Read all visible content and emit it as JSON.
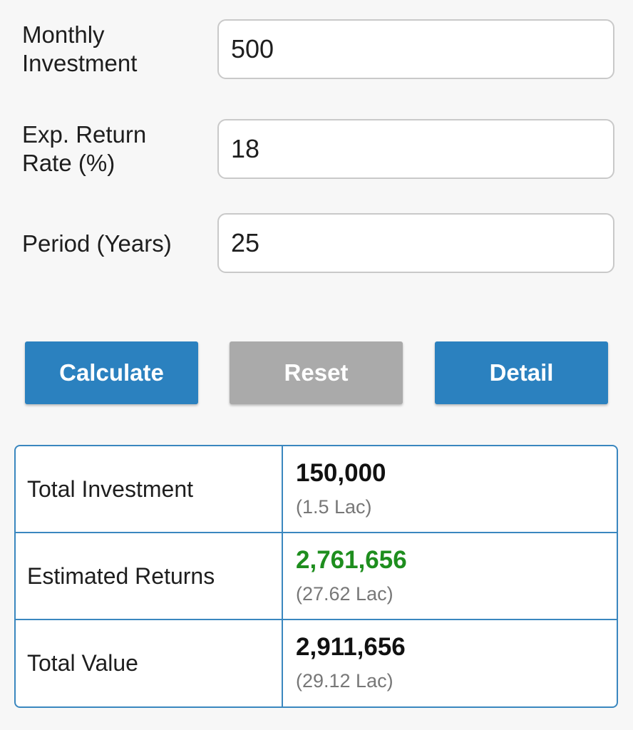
{
  "form": {
    "monthly_investment": {
      "label": "Monthly\nInvestment",
      "value": "500"
    },
    "return_rate": {
      "label": "Exp. Return\nRate (%)",
      "value": "18"
    },
    "period": {
      "label": "Period (Years)",
      "value": "25"
    }
  },
  "buttons": {
    "calculate": "Calculate",
    "reset": "Reset",
    "detail": "Detail"
  },
  "results": {
    "total_investment": {
      "label": "Total Investment",
      "value": "150,000",
      "sub": "(1.5 Lac)"
    },
    "estimated_returns": {
      "label": "Estimated Returns",
      "value": "2,761,656",
      "sub": "(27.62 Lac)"
    },
    "total_value": {
      "label": "Total Value",
      "value": "2,911,656",
      "sub": "(29.12 Lac)"
    }
  },
  "colors": {
    "primary_button": "#2b81bf",
    "disabled_button": "#aaaaaa",
    "returns_green": "#1e8e1e",
    "table_border": "#3a87bf"
  }
}
